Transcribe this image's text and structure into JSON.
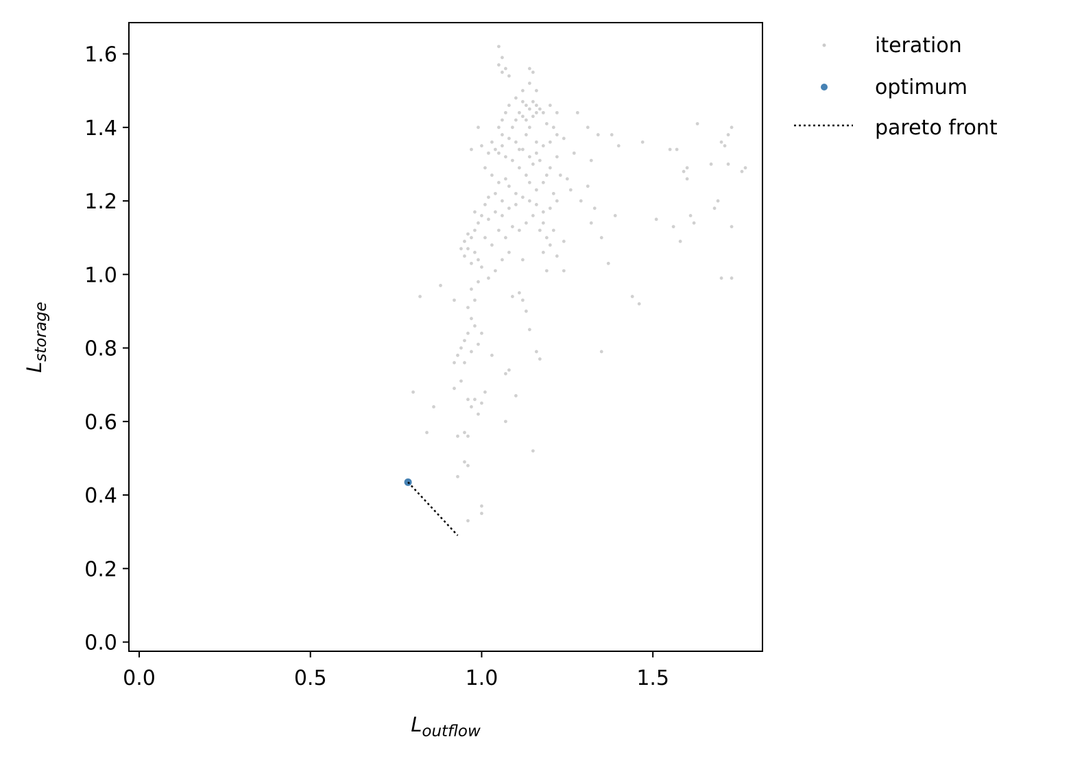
{
  "chart_data": {
    "type": "scatter",
    "xlabel_base": "L",
    "xlabel_sub": "outflow",
    "ylabel_base": "L",
    "ylabel_sub": "storage",
    "xlim": [
      -0.03,
      1.82
    ],
    "ylim": [
      -0.025,
      1.685
    ],
    "x_ticks": [
      0.0,
      0.5,
      1.0,
      1.5
    ],
    "x_tick_labels": [
      "0.0",
      "0.5",
      "1.0",
      "1.5"
    ],
    "y_ticks": [
      0.0,
      0.2,
      0.4,
      0.6,
      0.8,
      1.0,
      1.2,
      1.4,
      1.6
    ],
    "y_tick_labels": [
      "0.0",
      "0.2",
      "0.4",
      "0.6",
      "0.8",
      "1.0",
      "1.2",
      "1.4",
      "1.6"
    ],
    "grid": false,
    "legend_position": "outside-top-right",
    "series": [
      {
        "name": "iteration",
        "kind": "scatter",
        "color": "#a9a9a9",
        "points": [
          [
            1.05,
            1.62
          ],
          [
            1.06,
            1.59
          ],
          [
            1.05,
            1.57
          ],
          [
            1.06,
            1.55
          ],
          [
            1.07,
            1.56
          ],
          [
            1.08,
            1.54
          ],
          [
            1.14,
            1.56
          ],
          [
            1.15,
            1.55
          ],
          [
            1.12,
            1.5
          ],
          [
            1.14,
            1.52
          ],
          [
            1.16,
            1.5
          ],
          [
            1.1,
            1.48
          ],
          [
            1.12,
            1.47
          ],
          [
            1.13,
            1.46
          ],
          [
            1.14,
            1.45
          ],
          [
            1.15,
            1.47
          ],
          [
            1.16,
            1.46
          ],
          [
            1.17,
            1.45
          ],
          [
            1.11,
            1.44
          ],
          [
            1.12,
            1.43
          ],
          [
            1.13,
            1.42
          ],
          [
            1.15,
            1.43
          ],
          [
            1.16,
            1.44
          ],
          [
            1.08,
            1.46
          ],
          [
            1.07,
            1.44
          ],
          [
            1.06,
            1.42
          ],
          [
            1.05,
            1.4
          ],
          [
            1.06,
            1.38
          ],
          [
            1.09,
            1.4
          ],
          [
            1.1,
            1.42
          ],
          [
            1.18,
            1.44
          ],
          [
            1.2,
            1.46
          ],
          [
            1.22,
            1.44
          ],
          [
            1.19,
            1.41
          ],
          [
            1.21,
            1.4
          ],
          [
            1.22,
            1.38
          ],
          [
            1.24,
            1.37
          ],
          [
            1.2,
            1.36
          ],
          [
            1.18,
            1.35
          ],
          [
            1.16,
            1.33
          ],
          [
            1.17,
            1.31
          ],
          [
            1.15,
            1.3
          ],
          [
            1.14,
            1.32
          ],
          [
            1.12,
            1.34
          ],
          [
            1.1,
            1.36
          ],
          [
            1.08,
            1.37
          ],
          [
            1.06,
            1.35
          ],
          [
            1.05,
            1.33
          ],
          [
            1.04,
            1.34
          ],
          [
            1.03,
            1.36
          ],
          [
            1.02,
            1.33
          ],
          [
            1.0,
            1.35
          ],
          [
            0.99,
            1.4
          ],
          [
            0.97,
            1.34
          ],
          [
            1.01,
            1.29
          ],
          [
            1.03,
            1.27
          ],
          [
            1.05,
            1.25
          ],
          [
            1.07,
            1.26
          ],
          [
            1.08,
            1.24
          ],
          [
            1.1,
            1.22
          ],
          [
            1.11,
            1.29
          ],
          [
            1.13,
            1.27
          ],
          [
            1.14,
            1.25
          ],
          [
            1.16,
            1.23
          ],
          [
            1.18,
            1.25
          ],
          [
            1.19,
            1.27
          ],
          [
            1.2,
            1.29
          ],
          [
            1.21,
            1.22
          ],
          [
            1.22,
            1.2
          ],
          [
            1.2,
            1.18
          ],
          [
            1.18,
            1.17
          ],
          [
            1.16,
            1.19
          ],
          [
            1.14,
            1.2
          ],
          [
            1.12,
            1.21
          ],
          [
            1.1,
            1.19
          ],
          [
            1.08,
            1.18
          ],
          [
            1.06,
            1.16
          ],
          [
            1.04,
            1.17
          ],
          [
            1.02,
            1.15
          ],
          [
            1.0,
            1.16
          ],
          [
            0.99,
            1.14
          ],
          [
            0.98,
            1.12
          ],
          [
            0.97,
            1.1
          ],
          [
            0.96,
            1.11
          ],
          [
            0.95,
            1.09
          ],
          [
            0.96,
            1.07
          ],
          [
            0.98,
            1.06
          ],
          [
            0.99,
            1.04
          ],
          [
            1.0,
            1.02
          ],
          [
            0.97,
            1.03
          ],
          [
            0.95,
            1.05
          ],
          [
            0.94,
            1.07
          ],
          [
            1.01,
            1.1
          ],
          [
            1.03,
            1.08
          ],
          [
            1.05,
            1.12
          ],
          [
            1.07,
            1.1
          ],
          [
            1.09,
            1.13
          ],
          [
            1.11,
            1.12
          ],
          [
            1.13,
            1.14
          ],
          [
            1.15,
            1.16
          ],
          [
            1.17,
            1.12
          ],
          [
            1.19,
            1.1
          ],
          [
            1.2,
            1.08
          ],
          [
            1.18,
            1.06
          ],
          [
            1.22,
            1.05
          ],
          [
            1.24,
            1.01
          ],
          [
            1.19,
            1.01
          ],
          [
            1.12,
            1.04
          ],
          [
            1.08,
            1.06
          ],
          [
            1.06,
            1.04
          ],
          [
            1.04,
            1.01
          ],
          [
            1.02,
            0.99
          ],
          [
            0.99,
            0.98
          ],
          [
            0.97,
            0.96
          ],
          [
            0.98,
            0.93
          ],
          [
            0.96,
            0.91
          ],
          [
            0.97,
            0.88
          ],
          [
            0.98,
            0.86
          ],
          [
            0.96,
            0.84
          ],
          [
            0.95,
            0.82
          ],
          [
            0.94,
            0.8
          ],
          [
            0.93,
            0.78
          ],
          [
            0.95,
            0.76
          ],
          [
            0.97,
            0.79
          ],
          [
            0.99,
            0.81
          ],
          [
            1.0,
            0.84
          ],
          [
            0.92,
            0.76
          ],
          [
            0.94,
            0.71
          ],
          [
            0.92,
            0.69
          ],
          [
            0.96,
            0.66
          ],
          [
            0.97,
            0.64
          ],
          [
            0.99,
            0.62
          ],
          [
            0.98,
            0.66
          ],
          [
            1.0,
            0.65
          ],
          [
            1.01,
            0.68
          ],
          [
            0.95,
            0.57
          ],
          [
            0.93,
            0.56
          ],
          [
            0.96,
            0.56
          ],
          [
            0.95,
            0.49
          ],
          [
            0.96,
            0.48
          ],
          [
            0.93,
            0.45
          ],
          [
            1.0,
            0.37
          ],
          [
            1.0,
            0.35
          ],
          [
            0.96,
            0.33
          ],
          [
            0.86,
            0.64
          ],
          [
            0.84,
            0.57
          ],
          [
            0.8,
            0.68
          ],
          [
            0.82,
            0.94
          ],
          [
            0.88,
            0.97
          ],
          [
            0.92,
            0.93
          ],
          [
            1.07,
            0.6
          ],
          [
            1.07,
            0.73
          ],
          [
            1.08,
            0.74
          ],
          [
            1.1,
            0.67
          ],
          [
            1.14,
            0.85
          ],
          [
            1.16,
            0.79
          ],
          [
            1.17,
            0.77
          ],
          [
            1.15,
            0.52
          ],
          [
            1.11,
            0.95
          ],
          [
            1.12,
            0.93
          ],
          [
            1.09,
            0.94
          ],
          [
            1.13,
            0.9
          ],
          [
            1.03,
            0.78
          ],
          [
            1.25,
            1.26
          ],
          [
            1.27,
            1.33
          ],
          [
            1.28,
            1.44
          ],
          [
            1.31,
            1.4
          ],
          [
            1.32,
            1.31
          ],
          [
            1.34,
            1.38
          ],
          [
            1.31,
            1.24
          ],
          [
            1.33,
            1.18
          ],
          [
            1.29,
            1.2
          ],
          [
            1.32,
            1.14
          ],
          [
            1.35,
            1.1
          ],
          [
            1.37,
            1.03
          ],
          [
            1.35,
            0.79
          ],
          [
            1.38,
            1.38
          ],
          [
            1.4,
            1.35
          ],
          [
            1.39,
            1.16
          ],
          [
            1.47,
            1.36
          ],
          [
            1.51,
            1.15
          ],
          [
            1.44,
            0.94
          ],
          [
            1.46,
            0.92
          ],
          [
            1.55,
            1.34
          ],
          [
            1.57,
            1.34
          ],
          [
            1.56,
            1.13
          ],
          [
            1.58,
            1.09
          ],
          [
            1.59,
            1.28
          ],
          [
            1.6,
            1.26
          ],
          [
            1.61,
            1.16
          ],
          [
            1.62,
            1.14
          ],
          [
            1.63,
            1.41
          ],
          [
            1.67,
            1.3
          ],
          [
            1.68,
            1.18
          ],
          [
            1.69,
            1.2
          ],
          [
            1.7,
            1.36
          ],
          [
            1.71,
            1.35
          ],
          [
            1.72,
            1.38
          ],
          [
            1.72,
            1.3
          ],
          [
            1.73,
            1.4
          ],
          [
            1.76,
            1.28
          ],
          [
            1.77,
            1.29
          ],
          [
            1.73,
            1.13
          ],
          [
            1.73,
            0.99
          ],
          [
            1.7,
            0.99
          ],
          [
            1.6,
            1.29
          ],
          [
            1.14,
            1.4
          ],
          [
            1.16,
            1.36
          ],
          [
            1.13,
            1.38
          ],
          [
            1.11,
            1.34
          ],
          [
            1.09,
            1.31
          ],
          [
            1.07,
            1.32
          ],
          [
            1.22,
            1.32
          ],
          [
            1.23,
            1.27
          ],
          [
            1.26,
            1.23
          ],
          [
            1.18,
            1.14
          ],
          [
            1.21,
            1.12
          ],
          [
            1.24,
            1.09
          ],
          [
            1.02,
            1.21
          ],
          [
            1.01,
            1.19
          ],
          [
            0.98,
            1.17
          ],
          [
            1.04,
            1.22
          ],
          [
            1.06,
            1.2
          ]
        ]
      },
      {
        "name": "optimum",
        "kind": "scatter",
        "color": "#4682b4",
        "points": [
          [
            0.785,
            0.435
          ]
        ]
      },
      {
        "name": "pareto front",
        "kind": "line",
        "style": "dotted",
        "color": "#000000",
        "points": [
          [
            0.785,
            0.435
          ],
          [
            0.93,
            0.29
          ]
        ]
      }
    ]
  }
}
